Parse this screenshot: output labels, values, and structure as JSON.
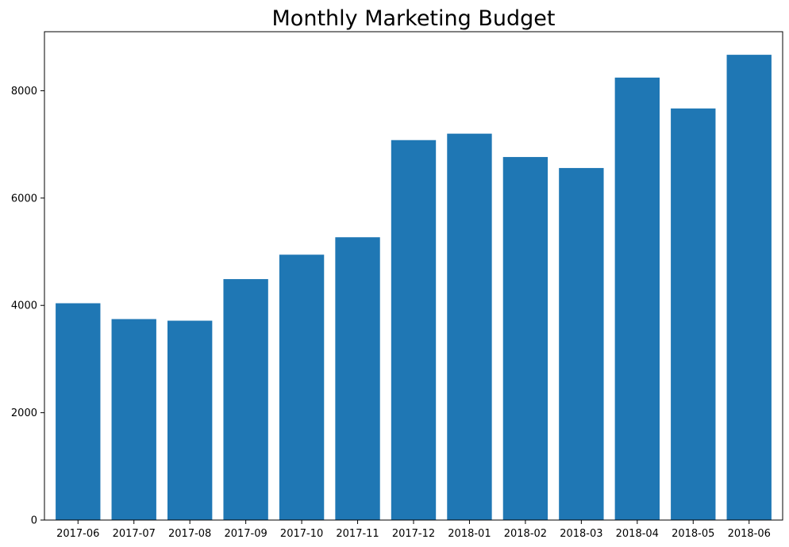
{
  "chart_data": {
    "type": "bar",
    "title": "Monthly Marketing Budget",
    "xlabel": "",
    "ylabel": "",
    "categories": [
      "2017-06",
      "2017-07",
      "2017-08",
      "2017-09",
      "2017-10",
      "2017-11",
      "2017-12",
      "2018-01",
      "2018-02",
      "2018-03",
      "2018-04",
      "2018-05",
      "2018-06"
    ],
    "values": [
      4040,
      3745,
      3715,
      4490,
      4945,
      5270,
      7080,
      7200,
      6765,
      6560,
      8245,
      7670,
      8670
    ],
    "yticks": [
      0,
      2000,
      4000,
      6000,
      8000
    ],
    "ylim": [
      0,
      9100
    ],
    "grid": false,
    "legend": "none",
    "bar_color": "#1f77b4"
  }
}
